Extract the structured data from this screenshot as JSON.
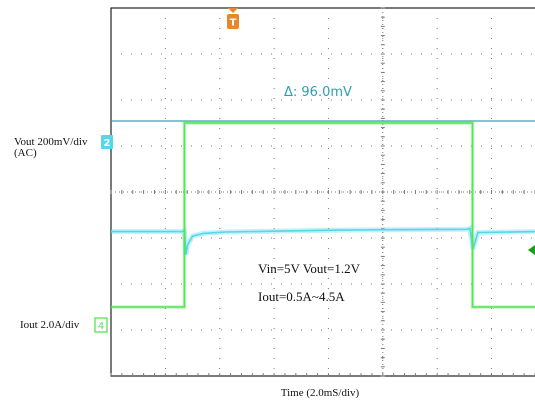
{
  "trigger": {
    "marker": "T",
    "color": "#e8862a"
  },
  "colors": {
    "ch2": "#55d6ea",
    "ch4": "#55e455",
    "delta_line": "#3aa0b4",
    "delta_text": "#2e9fb2",
    "grid": "#7a7a7a",
    "ch4_indicator": "#14a014"
  },
  "channels": {
    "ch2": {
      "label_line1": "Vout 200mV/div",
      "label_line2": "(AC)",
      "number": "2"
    },
    "ch4": {
      "label": "Iout  2.0A/div",
      "number": "4"
    }
  },
  "measurement": {
    "text": "Δ:  96.0mV"
  },
  "annotations": {
    "line1": "Vin=5V    Vout=1.2V",
    "line2": "Iout=0.5A~4.5A"
  },
  "x_axis": {
    "label": "Time  (2.0mS/div)"
  },
  "chart_data": {
    "type": "line",
    "x_unit": "ms",
    "x_per_div_ms": 2.0,
    "xlim": [
      -0.2,
      15.4
    ],
    "series": [
      {
        "name": "Vout 200mV/div (AC)",
        "y_unit": "mV",
        "ylim": [
          -640,
          960
        ],
        "points": [
          [
            -0.2,
            -12
          ],
          [
            2.4,
            -12
          ],
          [
            2.5,
            -8
          ],
          [
            2.56,
            -112
          ],
          [
            2.62,
            -70
          ],
          [
            2.8,
            -32
          ],
          [
            3.2,
            -20
          ],
          [
            4,
            -14
          ],
          [
            6,
            -10
          ],
          [
            8,
            -6
          ],
          [
            10,
            -4
          ],
          [
            12.9,
            -2
          ],
          [
            13.0,
            2
          ],
          [
            13.04,
            -28
          ],
          [
            13.12,
            -88
          ],
          [
            13.3,
            -16
          ],
          [
            15.4,
            -12
          ]
        ]
      },
      {
        "name": "Iout 2.0A/div",
        "y_unit": "A",
        "ylim": [
          -1.0,
          7.0
        ],
        "points": [
          [
            -0.2,
            0.5
          ],
          [
            2.5,
            0.5
          ],
          [
            2.5,
            4.5
          ],
          [
            13.1,
            4.5
          ],
          [
            13.1,
            0.5
          ],
          [
            15.4,
            0.5
          ]
        ]
      }
    ]
  }
}
